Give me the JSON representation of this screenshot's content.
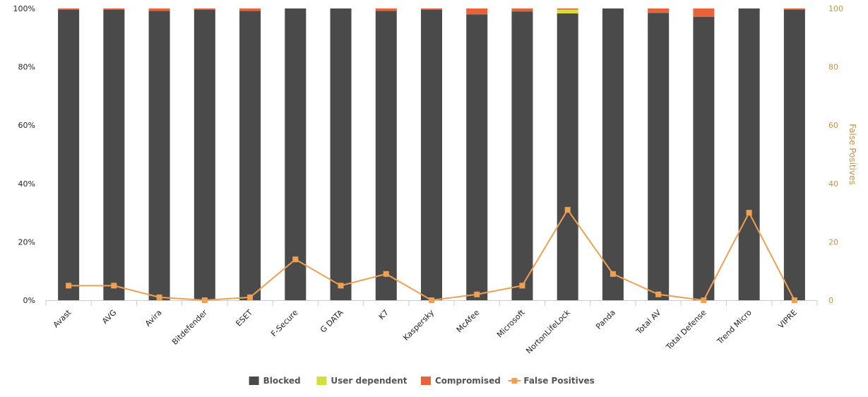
{
  "chart_data": {
    "type": "bar",
    "stacked": true,
    "categories": [
      "Avast",
      "AVG",
      "Avira",
      "Bitdefender",
      "ESET",
      "F-Secure",
      "G DATA",
      "K7",
      "Kaspersky",
      "McAfee",
      "Microsoft",
      "NortonLifeLock",
      "Panda",
      "Total AV",
      "Total Defense",
      "Trend Micro",
      "VIPRE"
    ],
    "series": [
      {
        "name": "Blocked",
        "kind": "bar",
        "color": "#4a4a4a",
        "values": [
          99.6,
          99.6,
          99.2,
          99.6,
          99.2,
          100,
          100,
          99.2,
          99.6,
          98.0,
          99.0,
          98.3,
          100,
          98.5,
          97.1,
          100,
          99.6
        ]
      },
      {
        "name": "User dependent",
        "kind": "bar",
        "color": "#d4df3c",
        "values": [
          0,
          0,
          0,
          0,
          0,
          0,
          0,
          0,
          0,
          0,
          0,
          1.3,
          0,
          0,
          0,
          0,
          0
        ]
      },
      {
        "name": "Compromised",
        "kind": "bar",
        "color": "#e8623a",
        "values": [
          0.4,
          0.4,
          0.8,
          0.4,
          0.8,
          0,
          0,
          0.8,
          0.4,
          2.0,
          1.0,
          0.4,
          0,
          1.5,
          2.9,
          0,
          0.4
        ]
      },
      {
        "name": "False Positives",
        "kind": "line",
        "color": "#f0a050",
        "axis": "right",
        "values": [
          5,
          5,
          1,
          0,
          1,
          14,
          5,
          9,
          0,
          2,
          5,
          31,
          9,
          2,
          0,
          30,
          0
        ]
      }
    ],
    "y_left": {
      "min": 0,
      "max": 100,
      "ticks": [
        "0%",
        "20%",
        "40%",
        "60%",
        "80%",
        "100%"
      ]
    },
    "y_right": {
      "label": "False Positives",
      "min": 0,
      "max": 100,
      "ticks": [
        "0",
        "20",
        "40",
        "60",
        "80",
        "100"
      ]
    },
    "grid": false,
    "legend_position": "bottom-center"
  }
}
